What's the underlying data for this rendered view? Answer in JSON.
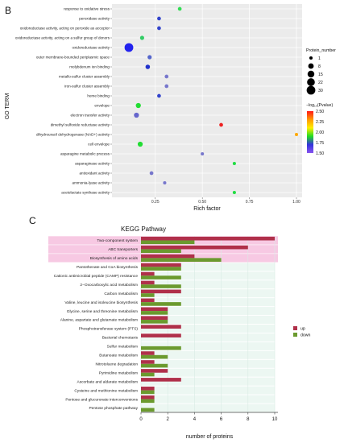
{
  "figure": {
    "panel_b_letter": "B",
    "panel_c_letter": "C"
  },
  "chart_data": [
    {
      "type": "scatter",
      "panel": "B",
      "xlabel": "Rich factor",
      "ylabel": "GO TERM",
      "xlim": [
        0.02,
        1.03
      ],
      "xticks": [
        "0.25",
        "0.50",
        "0.75",
        "1.00"
      ],
      "xtick_values": [
        0.25,
        0.5,
        0.75,
        1.0
      ],
      "grid": true,
      "categories": [
        "response to oxidative stress",
        "peroxidase activity",
        "oxidoreductase activity, acting on peroxide as acceptor",
        "oxidoreductase activity, acting on a sulfur group of donors",
        "oxidoreductase activity",
        "outer membrane-bounded periplasmic space",
        "molybdenum ion binding",
        "metallo-sulfur cluster assembly",
        "iron-sulfur cluster assembly",
        "heme binding",
        "envelope",
        "electron transfer activity",
        "dimethyl sulfoxide reductase activity",
        "dihydrouracil dehydrogenase (NAD+) activity",
        "cell envelope",
        "asparagine metabolic process",
        "asparaginase activity",
        "antioxidant activity",
        "ammonia-lyase activity",
        "acetolactate synthase activity"
      ],
      "points": [
        {
          "term": "response to oxidative stress",
          "rich_factor": 0.38,
          "protein_number": 2,
          "color": "#33dd55"
        },
        {
          "term": "peroxidase activity",
          "rich_factor": 0.27,
          "protein_number": 2,
          "color": "#3344cc"
        },
        {
          "term": "oxidoreductase activity, acting on peroxide as acceptor",
          "rich_factor": 0.27,
          "protein_number": 2,
          "color": "#3344cc"
        },
        {
          "term": "oxidoreductase activity, acting on a sulfur group of donors",
          "rich_factor": 0.18,
          "protein_number": 3,
          "color": "#33cc66"
        },
        {
          "term": "oxidoreductase activity",
          "rich_factor": 0.11,
          "protein_number": 30,
          "color": "#2222ee"
        },
        {
          "term": "outer membrane-bounded periplasmic space",
          "rich_factor": 0.22,
          "protein_number": 3,
          "color": "#5566cc"
        },
        {
          "term": "molybdenum ion binding",
          "rich_factor": 0.21,
          "protein_number": 4,
          "color": "#2233cc"
        },
        {
          "term": "metallo-sulfur cluster assembly",
          "rich_factor": 0.31,
          "protein_number": 2,
          "color": "#7777cc"
        },
        {
          "term": "iron-sulfur cluster assembly",
          "rich_factor": 0.31,
          "protein_number": 2,
          "color": "#7777cc"
        },
        {
          "term": "heme binding",
          "rich_factor": 0.27,
          "protein_number": 2,
          "color": "#3344cc"
        },
        {
          "term": "envelope",
          "rich_factor": 0.16,
          "protein_number": 6,
          "color": "#22dd33"
        },
        {
          "term": "electron transfer activity",
          "rich_factor": 0.15,
          "protein_number": 6,
          "color": "#6666cc"
        },
        {
          "term": "dimethyl sulfoxide reductase activity",
          "rich_factor": 0.6,
          "protein_number": 2,
          "color": "#ee2222"
        },
        {
          "term": "dihydrouracil dehydrogenase (NAD+) activity",
          "rich_factor": 1.0,
          "protein_number": 1,
          "color": "#ffaa00"
        },
        {
          "term": "cell envelope",
          "rich_factor": 0.17,
          "protein_number": 6,
          "color": "#22dd33"
        },
        {
          "term": "asparagine metabolic process",
          "rich_factor": 0.5,
          "protein_number": 1,
          "color": "#7777cc"
        },
        {
          "term": "asparaginase activity",
          "rich_factor": 0.67,
          "protein_number": 1,
          "color": "#22dd44"
        },
        {
          "term": "antioxidant activity",
          "rich_factor": 0.23,
          "protein_number": 2,
          "color": "#7777cc"
        },
        {
          "term": "ammonia-lyase activity",
          "rich_factor": 0.3,
          "protein_number": 1,
          "color": "#7777cc"
        },
        {
          "term": "acetolactate synthase activity",
          "rich_factor": 0.67,
          "protein_number": 1,
          "color": "#22dd44"
        }
      ],
      "legend_size": {
        "title": "Protein_number",
        "values": [
          1,
          8,
          15,
          22,
          30
        ],
        "labels": [
          "1",
          "8",
          "15",
          "22",
          "30"
        ]
      },
      "legend_color": {
        "title": "−log₁₀(Pvalue)",
        "range": [
          1.5,
          2.5
        ],
        "ticks": [
          "2.50",
          "2.25",
          "2.00",
          "1.75",
          "1.50"
        ],
        "colors": [
          "#ff1a1a",
          "#ff9900",
          "#ffee00",
          "#22dd22",
          "#3333dd",
          "#8855ee"
        ]
      }
    },
    {
      "type": "bar",
      "panel": "C",
      "title": "KEGG Pathway",
      "xlabel": "number of proteins",
      "xlim": [
        0,
        10
      ],
      "xticks": [
        "0",
        "2",
        "4",
        "6",
        "8",
        "10"
      ],
      "xtick_values": [
        0,
        2,
        4,
        6,
        8,
        10
      ],
      "legend_position": "right",
      "categories": [
        "Two-component system",
        "ABC transporters",
        "Biosynthesis of amino acids",
        "Pantothenate and CoA biosynthesis",
        "Cationic antimicrobial peptide (CAMP) resistance",
        "2−Oxocarboxylic acid metabolism",
        "Carbon metabolism",
        "Valine, leucine and isoleucine biosynthesis",
        "Glycine, serine and threonine metabolism",
        "Alanine, aspartate and glutamate metabolism",
        "Phosphotransferase system (PTS)",
        "Bacterial chemotaxis",
        "Sulfur metabolism",
        "Butanoate metabolism",
        "Nitrotoluene degradation",
        "Pyrimidine metabolism",
        "Ascorbate and aldarate metabolism",
        "Cysteine and methionine metabolism",
        "Pentose and glucuronate interconversions",
        "Pentose phosphate pathway"
      ],
      "series": [
        {
          "name": "up",
          "color": "#b0304a",
          "values": [
            10,
            8,
            4,
            3,
            1,
            1,
            3,
            1,
            2,
            2,
            3,
            3,
            0,
            1,
            1,
            2,
            3,
            1,
            1,
            0
          ]
        },
        {
          "name": "down",
          "color": "#6b9a2e",
          "values": [
            4,
            3,
            6,
            3,
            3,
            3,
            1,
            3,
            2,
            2,
            0,
            0,
            3,
            2,
            2,
            1,
            0,
            1,
            1,
            1
          ]
        }
      ]
    }
  ]
}
